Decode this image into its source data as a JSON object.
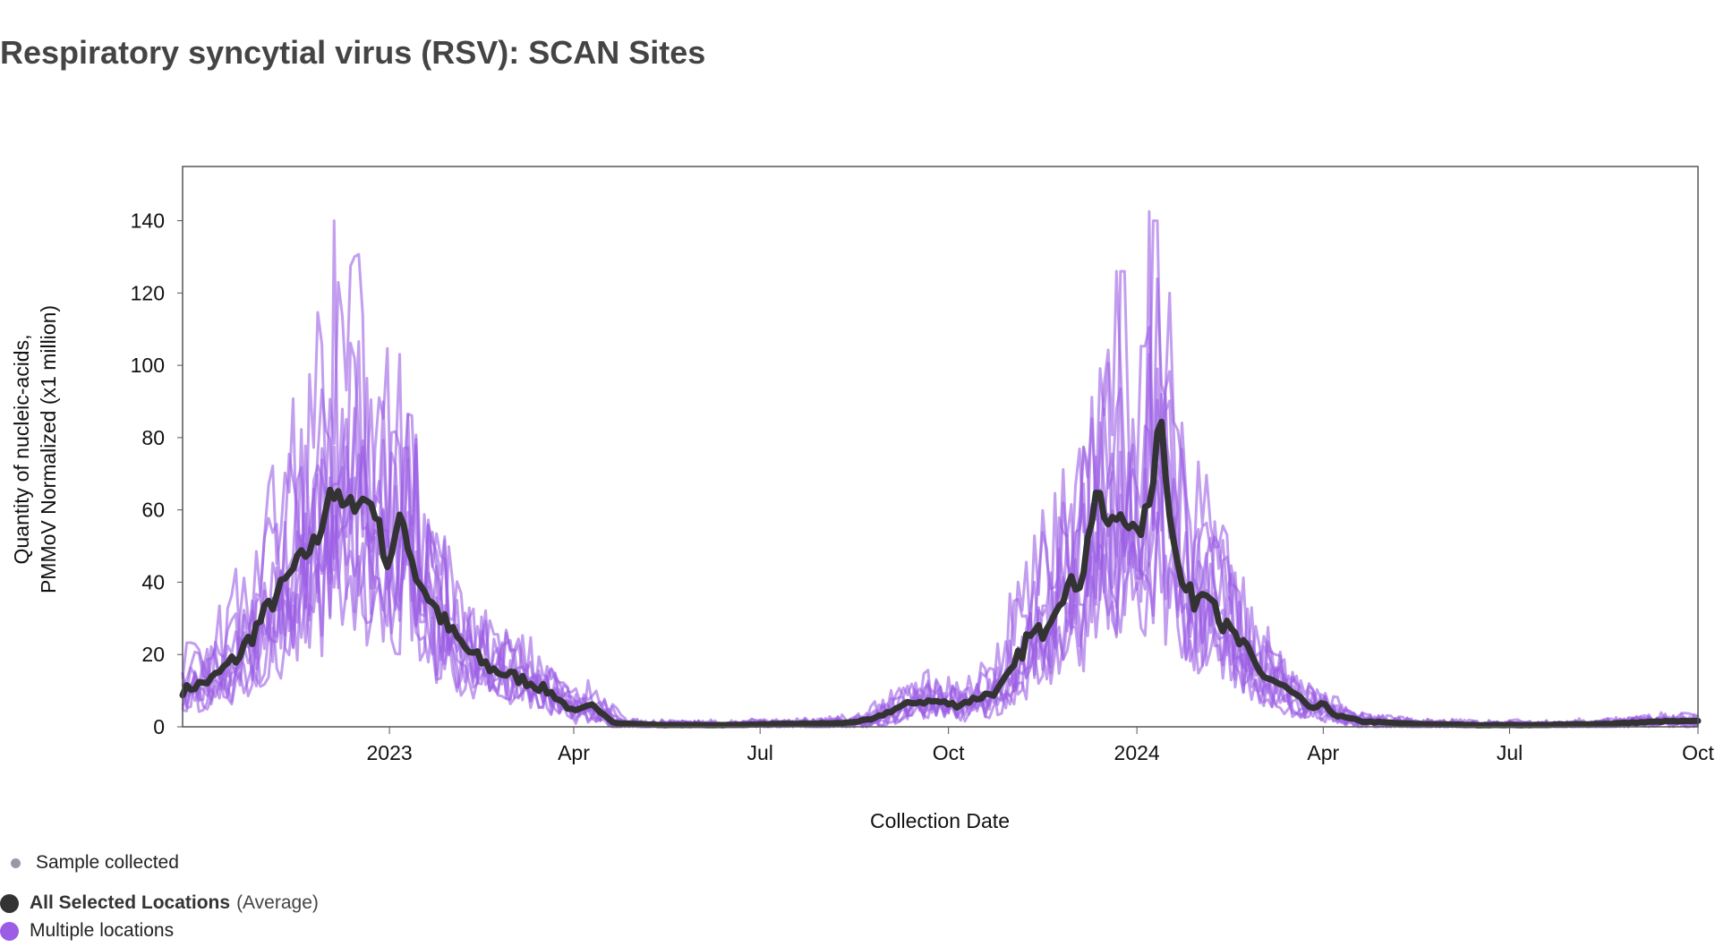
{
  "page": {
    "title": "Respiratory syncytial virus (RSV): SCAN Sites"
  },
  "colors": {
    "average": "#333333",
    "locations": "#9b5de5",
    "sample_dot": "#9a98a8"
  },
  "legend": {
    "sample_label": "Sample collected",
    "average_label": "All Selected Locations",
    "average_suffix": "(Average)",
    "locations_label": "Multiple locations"
  },
  "chart_data": {
    "type": "line",
    "title": "",
    "xlabel": "Collection Date",
    "ylabel_lines": [
      "Quantity of nucleic-acids,",
      "PMMoV Normalized (x1 million)"
    ],
    "x_range": [
      "2022-09-22",
      "2024-10-01"
    ],
    "ylim": [
      0,
      155
    ],
    "y_ticks": [
      0,
      20,
      40,
      60,
      80,
      100,
      120,
      140
    ],
    "x_ticks": [
      {
        "date": "2023-01-01",
        "label": "2023"
      },
      {
        "date": "2023-04-01",
        "label": "Apr"
      },
      {
        "date": "2023-07-01",
        "label": "Jul"
      },
      {
        "date": "2023-10-01",
        "label": "Oct"
      },
      {
        "date": "2024-01-01",
        "label": "2024"
      },
      {
        "date": "2024-04-01",
        "label": "Apr"
      },
      {
        "date": "2024-07-01",
        "label": "Jul"
      },
      {
        "date": "2024-10-01",
        "label": "Oct"
      }
    ],
    "grid": false,
    "legend_position": "bottom-left",
    "series": [
      {
        "name": "All Selected Locations (Average)",
        "points": [
          [
            "2022-09-22",
            10
          ],
          [
            "2022-10-06",
            13
          ],
          [
            "2022-10-20",
            20
          ],
          [
            "2022-11-03",
            33
          ],
          [
            "2022-11-17",
            45
          ],
          [
            "2022-11-27",
            52
          ],
          [
            "2022-12-03",
            66
          ],
          [
            "2022-12-10",
            60
          ],
          [
            "2022-12-17",
            63
          ],
          [
            "2022-12-24",
            62
          ],
          [
            "2022-12-31",
            45
          ],
          [
            "2023-01-07",
            58
          ],
          [
            "2023-01-14",
            42
          ],
          [
            "2023-01-21",
            35
          ],
          [
            "2023-01-31",
            26
          ],
          [
            "2023-02-10",
            20
          ],
          [
            "2023-02-20",
            16
          ],
          [
            "2023-03-02",
            14
          ],
          [
            "2023-03-12",
            12
          ],
          [
            "2023-03-22",
            9
          ],
          [
            "2023-04-01",
            4
          ],
          [
            "2023-04-11",
            6
          ],
          [
            "2023-04-21",
            1
          ],
          [
            "2023-05-15",
            0.5
          ],
          [
            "2023-06-15",
            0.5
          ],
          [
            "2023-07-15",
            0.8
          ],
          [
            "2023-08-10",
            1
          ],
          [
            "2023-08-25",
            2
          ],
          [
            "2023-09-05",
            5
          ],
          [
            "2023-09-15",
            7
          ],
          [
            "2023-09-25",
            7
          ],
          [
            "2023-10-05",
            6
          ],
          [
            "2023-10-15",
            8
          ],
          [
            "2023-10-25",
            10
          ],
          [
            "2023-11-01",
            15
          ],
          [
            "2023-11-08",
            24
          ],
          [
            "2023-11-15",
            26
          ],
          [
            "2023-11-25",
            37
          ],
          [
            "2023-12-05",
            41
          ],
          [
            "2023-12-12",
            65
          ],
          [
            "2023-12-18",
            55
          ],
          [
            "2023-12-25",
            60
          ],
          [
            "2024-01-01",
            52
          ],
          [
            "2024-01-08",
            63
          ],
          [
            "2024-01-12",
            90
          ],
          [
            "2024-01-16",
            65
          ],
          [
            "2024-01-22",
            40
          ],
          [
            "2024-01-29",
            35
          ],
          [
            "2024-02-05",
            40
          ],
          [
            "2024-02-12",
            28
          ],
          [
            "2024-02-22",
            22
          ],
          [
            "2024-03-01",
            15
          ],
          [
            "2024-03-10",
            12
          ],
          [
            "2024-03-20",
            8
          ],
          [
            "2024-03-25",
            5
          ],
          [
            "2024-04-01",
            6
          ],
          [
            "2024-04-08",
            3
          ],
          [
            "2024-04-20",
            1.5
          ],
          [
            "2024-05-15",
            0.8
          ],
          [
            "2024-06-15",
            0.5
          ],
          [
            "2024-07-15",
            0.5
          ],
          [
            "2024-08-15",
            0.8
          ],
          [
            "2024-09-15",
            1.5
          ],
          [
            "2024-10-01",
            1.5
          ]
        ]
      },
      {
        "name": "Multiple locations",
        "count": 9,
        "peaks": [
          {
            "date": "2022-12-05",
            "value": 140
          },
          {
            "date": "2023-12-25",
            "value": 126
          },
          {
            "date": "2024-01-10",
            "value": 140
          }
        ]
      }
    ]
  }
}
